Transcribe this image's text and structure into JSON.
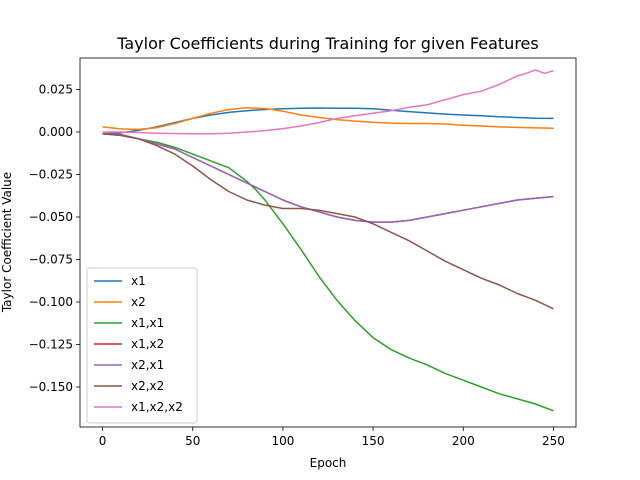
{
  "chart_data": {
    "type": "line",
    "title": "Taylor Coefficients during Training for given Features",
    "xlabel": "Epoch",
    "ylabel": "Taylor Coefficient Value",
    "xlim": [
      -12.5,
      262.5
    ],
    "ylim": [
      -0.1735,
      0.0435
    ],
    "xticks": [
      0,
      50,
      100,
      150,
      200,
      250
    ],
    "xtick_labels": [
      "0",
      "50",
      "100",
      "150",
      "200",
      "250"
    ],
    "yticks": [
      0.025,
      0.0,
      -0.025,
      -0.05,
      -0.075,
      -0.1,
      -0.125,
      -0.15
    ],
    "ytick_labels": [
      "0.025",
      "0.000",
      "−0.025",
      "−0.050",
      "−0.075",
      "−0.100",
      "−0.125",
      "−0.150"
    ],
    "grid": false,
    "legend_position": "lower-left",
    "series": [
      {
        "name": "x1",
        "color": "#1f77b4",
        "x": [
          0,
          10,
          20,
          30,
          40,
          50,
          60,
          70,
          80,
          90,
          100,
          110,
          120,
          130,
          140,
          150,
          160,
          170,
          180,
          190,
          200,
          210,
          220,
          230,
          240,
          250
        ],
        "y": [
          -0.001,
          -0.0005,
          0.001,
          0.003,
          0.0055,
          0.008,
          0.01,
          0.0115,
          0.0125,
          0.0132,
          0.0137,
          0.014,
          0.0141,
          0.014,
          0.0139,
          0.0136,
          0.0128,
          0.012,
          0.0112,
          0.0105,
          0.01,
          0.0095,
          0.009,
          0.0085,
          0.0081,
          0.008
        ]
      },
      {
        "name": "x2",
        "color": "#ff7f0e",
        "x": [
          0,
          10,
          20,
          30,
          40,
          50,
          60,
          70,
          80,
          90,
          100,
          110,
          120,
          130,
          140,
          150,
          160,
          170,
          180,
          190,
          200,
          210,
          220,
          230,
          240,
          250
        ],
        "y": [
          0.003,
          0.0018,
          0.0015,
          0.0025,
          0.005,
          0.008,
          0.011,
          0.0132,
          0.0142,
          0.0138,
          0.0122,
          0.01,
          0.0085,
          0.0073,
          0.0064,
          0.0057,
          0.0052,
          0.005,
          0.005,
          0.0047,
          0.004,
          0.0035,
          0.003,
          0.0027,
          0.0024,
          0.0022
        ]
      },
      {
        "name": "x1,x1",
        "color": "#2ca02c",
        "x": [
          0,
          10,
          20,
          30,
          40,
          50,
          60,
          70,
          75,
          80,
          85,
          90,
          95,
          100,
          110,
          120,
          130,
          140,
          150,
          160,
          170,
          180,
          190,
          200,
          210,
          220,
          230,
          240,
          250
        ],
        "y": [
          -0.001,
          -0.002,
          -0.004,
          -0.006,
          -0.009,
          -0.013,
          -0.017,
          -0.021,
          -0.025,
          -0.029,
          -0.034,
          -0.04,
          -0.047,
          -0.054,
          -0.069,
          -0.085,
          -0.099,
          -0.111,
          -0.121,
          -0.128,
          -0.133,
          -0.137,
          -0.142,
          -0.146,
          -0.15,
          -0.154,
          -0.157,
          -0.16,
          -0.164
        ]
      },
      {
        "name": "x1,x2",
        "color": "#d62728",
        "x": [
          0,
          10,
          20,
          30,
          40,
          50,
          60,
          70,
          80,
          90,
          100,
          110,
          120,
          130,
          140,
          150,
          160,
          170,
          180,
          190,
          200,
          210,
          220,
          230,
          240,
          250
        ],
        "y": [
          -0.001,
          -0.0015,
          -0.004,
          -0.007,
          -0.01,
          -0.015,
          -0.02,
          -0.025,
          -0.03,
          -0.035,
          -0.04,
          -0.044,
          -0.047,
          -0.05,
          -0.052,
          -0.053,
          -0.053,
          -0.052,
          -0.05,
          -0.048,
          -0.046,
          -0.044,
          -0.042,
          -0.04,
          -0.039,
          -0.038
        ]
      },
      {
        "name": "x2,x1",
        "color": "#9467bd",
        "x": [
          0,
          10,
          20,
          30,
          40,
          50,
          60,
          70,
          80,
          90,
          100,
          110,
          120,
          130,
          140,
          150,
          160,
          170,
          180,
          190,
          200,
          210,
          220,
          230,
          240,
          250
        ],
        "y": [
          -0.001,
          -0.0015,
          -0.004,
          -0.007,
          -0.01,
          -0.015,
          -0.02,
          -0.025,
          -0.03,
          -0.035,
          -0.04,
          -0.044,
          -0.047,
          -0.05,
          -0.052,
          -0.053,
          -0.053,
          -0.052,
          -0.05,
          -0.048,
          -0.046,
          -0.044,
          -0.042,
          -0.04,
          -0.039,
          -0.038
        ]
      },
      {
        "name": "x2,x2",
        "color": "#8c564b",
        "x": [
          0,
          10,
          20,
          30,
          40,
          50,
          60,
          70,
          80,
          90,
          100,
          110,
          120,
          130,
          140,
          150,
          160,
          170,
          180,
          190,
          200,
          210,
          220,
          230,
          240,
          250
        ],
        "y": [
          -0.001,
          -0.002,
          -0.004,
          -0.008,
          -0.013,
          -0.02,
          -0.028,
          -0.035,
          -0.04,
          -0.043,
          -0.045,
          -0.045,
          -0.046,
          -0.048,
          -0.05,
          -0.054,
          -0.059,
          -0.064,
          -0.07,
          -0.076,
          -0.081,
          -0.086,
          -0.09,
          -0.095,
          -0.099,
          -0.104
        ]
      },
      {
        "name": "x1,x2,x2",
        "color": "#e377c2",
        "x": [
          0,
          10,
          20,
          30,
          40,
          50,
          60,
          70,
          80,
          90,
          100,
          110,
          120,
          130,
          140,
          150,
          160,
          170,
          180,
          190,
          200,
          210,
          220,
          230,
          235,
          240,
          245,
          250
        ],
        "y": [
          0.0,
          0.0,
          -0.0003,
          -0.0007,
          -0.0009,
          -0.001,
          -0.001,
          -0.0007,
          0.0,
          0.0008,
          0.002,
          0.0035,
          0.0055,
          0.008,
          0.0095,
          0.011,
          0.0125,
          0.0145,
          0.016,
          0.019,
          0.022,
          0.024,
          0.028,
          0.033,
          0.0345,
          0.0365,
          0.0345,
          0.036
        ]
      }
    ]
  }
}
